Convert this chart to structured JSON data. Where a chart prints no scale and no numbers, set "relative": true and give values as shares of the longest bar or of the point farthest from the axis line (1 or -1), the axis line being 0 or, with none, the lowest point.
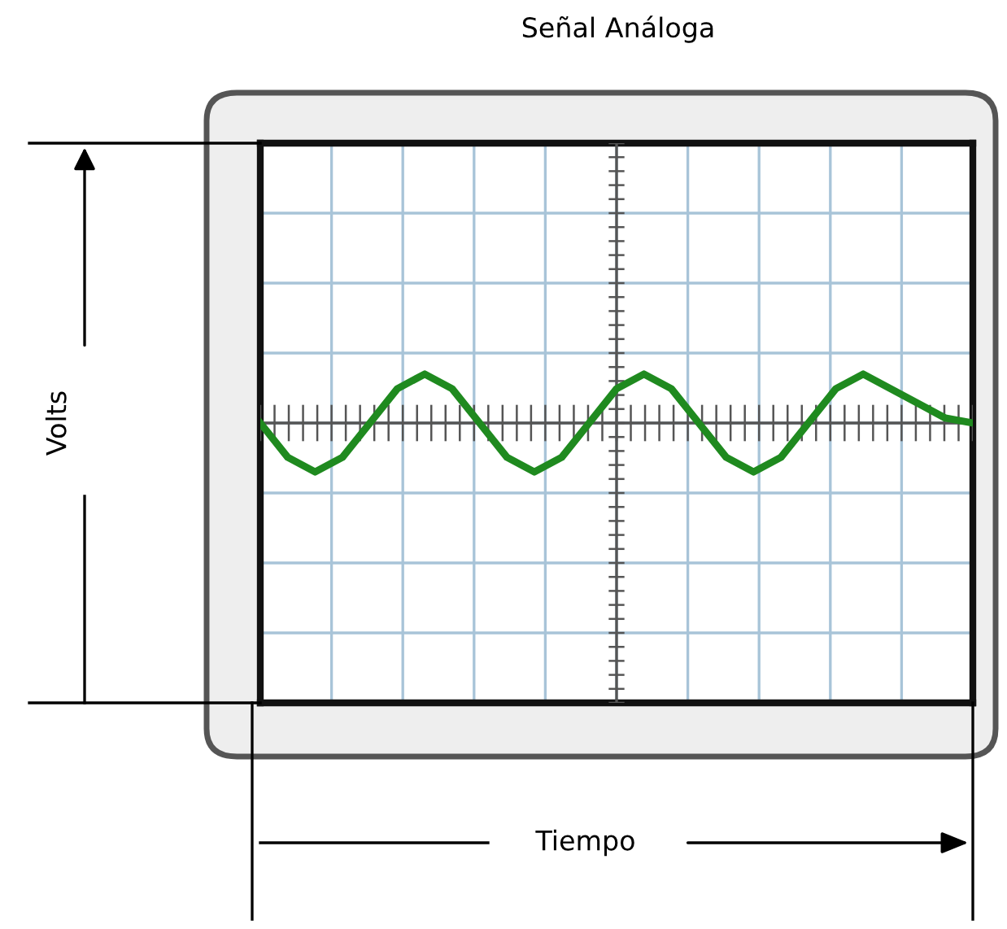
{
  "chart_data": {
    "type": "line",
    "title": "Señal Análoga",
    "annotations": [
      "Volts",
      "Tiempo"
    ],
    "relative": true,
    "categories": [
      null,
      null,
      null,
      null,
      null,
      null,
      null,
      null,
      null,
      null,
      null,
      null,
      null,
      null,
      null,
      null,
      null,
      null,
      null,
      null,
      null,
      null,
      null,
      null,
      null,
      null,
      null
    ],
    "series": [
      {
        "color": "#1f8a1f",
        "values": [
          0,
          -0.7,
          -1,
          -0.7,
          0,
          0.7,
          1,
          0.7,
          0,
          -0.7,
          -1,
          -0.7,
          0,
          0.7,
          1,
          0.7,
          0,
          -0.7,
          -1,
          -0.7,
          0,
          0.7,
          1,
          0.7,
          0.4,
          0.1,
          0
        ]
      }
    ],
    "grid": true,
    "marker": "none",
    "line_style": "solid"
  }
}
